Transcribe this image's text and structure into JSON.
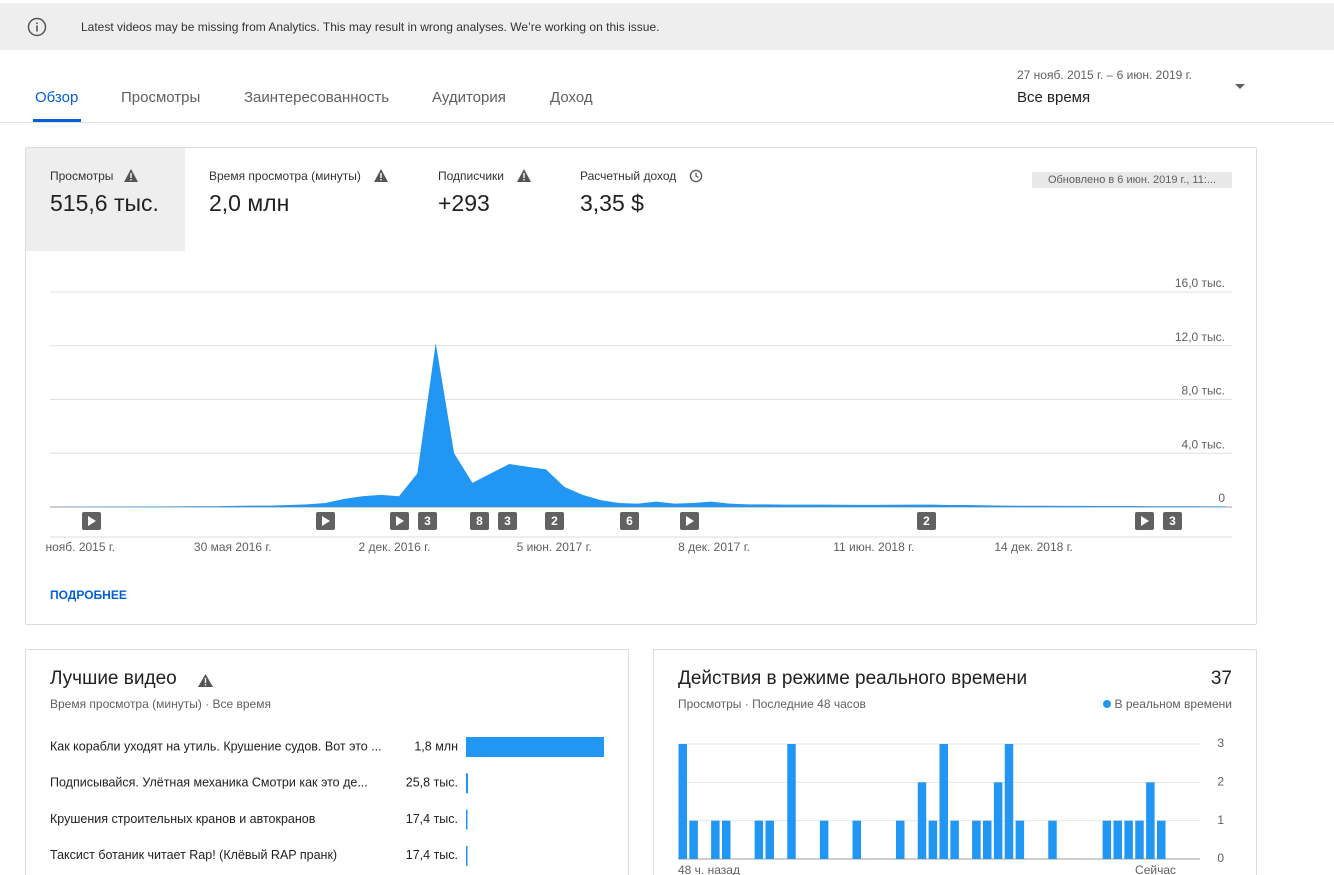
{
  "banner": {
    "text": "Latest videos may be missing from Analytics. This may result in wrong analyses. We’re working on this issue."
  },
  "tabs": [
    "Обзор",
    "Просмотры",
    "Заинтересованность",
    "Аудитория",
    "Доход"
  ],
  "date_range": {
    "range": "27 нояб. 2015 г. – 6 июн. 2019 г.",
    "label": "Все время"
  },
  "metrics": [
    {
      "label": "Просмотры",
      "value": "515,6 тыс."
    },
    {
      "label": "Время просмотра (минуты)",
      "value": "2,0 млн"
    },
    {
      "label": "Подписчики",
      "value": "+293"
    },
    {
      "label": "Расчетный доход",
      "value": "3,35 $"
    }
  ],
  "updated": "Обновлено в 6 июн. 2019 г., 11:...",
  "views_chart": {
    "type": "area",
    "color": "#2196f3",
    "x": [
      0,
      20,
      40,
      60,
      80,
      100,
      120,
      140,
      160,
      180,
      200,
      220,
      240,
      260,
      280,
      300,
      320,
      340,
      360,
      380,
      400,
      420,
      440,
      460,
      480,
      500,
      520,
      540,
      560,
      580,
      600,
      620,
      640,
      660,
      680,
      700,
      720,
      740,
      760,
      780,
      800,
      820,
      840,
      860,
      880,
      900,
      920,
      940,
      960,
      980,
      1000,
      1020,
      1040,
      1060,
      1080,
      1100,
      1120,
      1140,
      1160,
      1180,
      1200,
      1220,
      1240,
      1260,
      1280
    ],
    "values": [
      0,
      20,
      20,
      30,
      30,
      40,
      40,
      50,
      60,
      60,
      80,
      100,
      100,
      150,
      200,
      300,
      600,
      800,
      900,
      800,
      2500,
      12200,
      4000,
      1800,
      2500,
      3200,
      3000,
      2800,
      1500,
      900,
      500,
      300,
      250,
      400,
      250,
      300,
      400,
      250,
      200,
      200,
      180,
      180,
      180,
      170,
      160,
      160,
      170,
      180,
      180,
      150,
      150,
      120,
      100,
      90,
      90,
      80,
      80,
      70,
      70,
      70,
      60,
      60,
      60,
      50,
      50
    ],
    "xlim": [
      0,
      1287
    ],
    "xticks": [
      {
        "value": 33,
        "label": "нояб. 2015 г."
      },
      {
        "value": 199,
        "label": "30 мая 2016 г."
      },
      {
        "value": 375,
        "label": "2 дек. 2016 г."
      },
      {
        "value": 549,
        "label": "5 июн. 2017 г."
      },
      {
        "value": 723,
        "label": "8 дек. 2017 г."
      },
      {
        "value": 897,
        "label": "11 июн. 2018 г."
      },
      {
        "value": 1071,
        "label": "14 дек. 2018 г."
      }
    ],
    "ylim": [
      0,
      16000
    ],
    "yticks": [
      0,
      {
        "value": 4000,
        "label": "4,0 тыс."
      },
      {
        "value": 8000,
        "label": "8,0 тыс."
      },
      {
        "value": 12000,
        "label": "12,0 тыс."
      },
      {
        "value": 16000,
        "label": "16,0 тыс."
      }
    ],
    "grid": true,
    "video_markers": [
      "3",
      "8",
      "3",
      "2",
      "6",
      "2",
      "3"
    ]
  },
  "more_link": "ПОДРОБНЕЕ",
  "top_videos": {
    "type": "bar",
    "title": "Лучшие видео",
    "subtitle": "Время просмотра (минуты) · Все время",
    "color": "#2196f3",
    "categories": [
      "Как корабли уходят на утиль. Крушение судов. Вот это ...",
      "Подписывайся. Улётная механика Смотри как это де...",
      "Крушения строительных кранов и автокранов",
      "Таксист ботаник читает Rap! (Клёвый RAP пранк)"
    ],
    "values": [
      1800000,
      25800,
      17400,
      17400
    ],
    "value_labels": [
      "1,8 млн",
      "25,8 тыс.",
      "17,4 тыс.",
      "17,4 тыс."
    ]
  },
  "realtime": {
    "type": "bar",
    "title": "Действия в режиме реального времени",
    "total": 37,
    "subtitle": "Просмотры · Последние 48 часов",
    "legend": "В реальном времени",
    "color": "#2196f3",
    "values": [
      3,
      1,
      0,
      1,
      1,
      0,
      0,
      1,
      1,
      0,
      3,
      0,
      0,
      1,
      0,
      0,
      1,
      0,
      0,
      0,
      1,
      0,
      2,
      1,
      3,
      1,
      0,
      1,
      1,
      2,
      3,
      1,
      0,
      0,
      1,
      0,
      0,
      0,
      0,
      1,
      1,
      1,
      1,
      2,
      1,
      0,
      0,
      0
    ],
    "ylim": [
      0,
      3
    ],
    "yticks": [
      0,
      1,
      2,
      3
    ],
    "grid": true,
    "x_labels": [
      "48 ч. назад",
      "Сейчас"
    ]
  }
}
